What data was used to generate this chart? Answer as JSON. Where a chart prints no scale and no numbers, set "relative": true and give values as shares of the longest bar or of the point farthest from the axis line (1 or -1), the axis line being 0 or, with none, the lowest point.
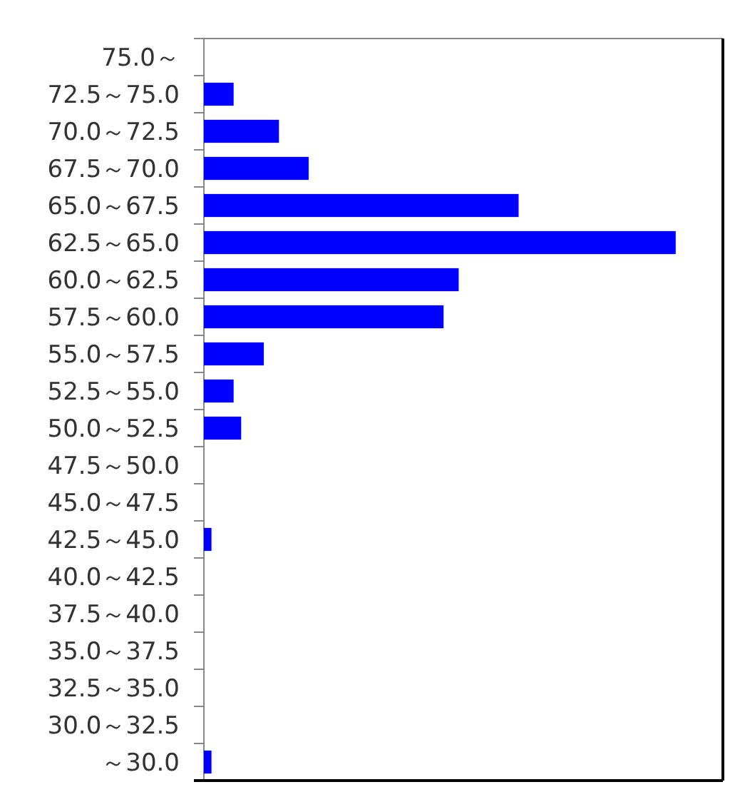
{
  "chart_data": {
    "type": "bar",
    "orientation": "horizontal",
    "relative": true,
    "color": "#0000ff",
    "categories": [
      "75.0～",
      "72.5～75.0",
      "70.0～72.5",
      "67.5～70.0",
      "65.0～67.5",
      "62.5～65.0",
      "60.0～62.5",
      "57.5～60.0",
      "55.0～57.5",
      "52.5～55.0",
      "50.0～52.5",
      "47.5～50.0",
      "45.0～47.5",
      "42.5～45.0",
      "40.0～42.5",
      "37.5～40.0",
      "35.0～37.5",
      "32.5～35.0",
      "30.0～32.5",
      "～30.0"
    ],
    "values": [
      0,
      0.063,
      0.159,
      0.222,
      0.667,
      1,
      0.54,
      0.508,
      0.127,
      0.063,
      0.079,
      0,
      0,
      0.016,
      0,
      0,
      0,
      0,
      0,
      0.016
    ]
  }
}
